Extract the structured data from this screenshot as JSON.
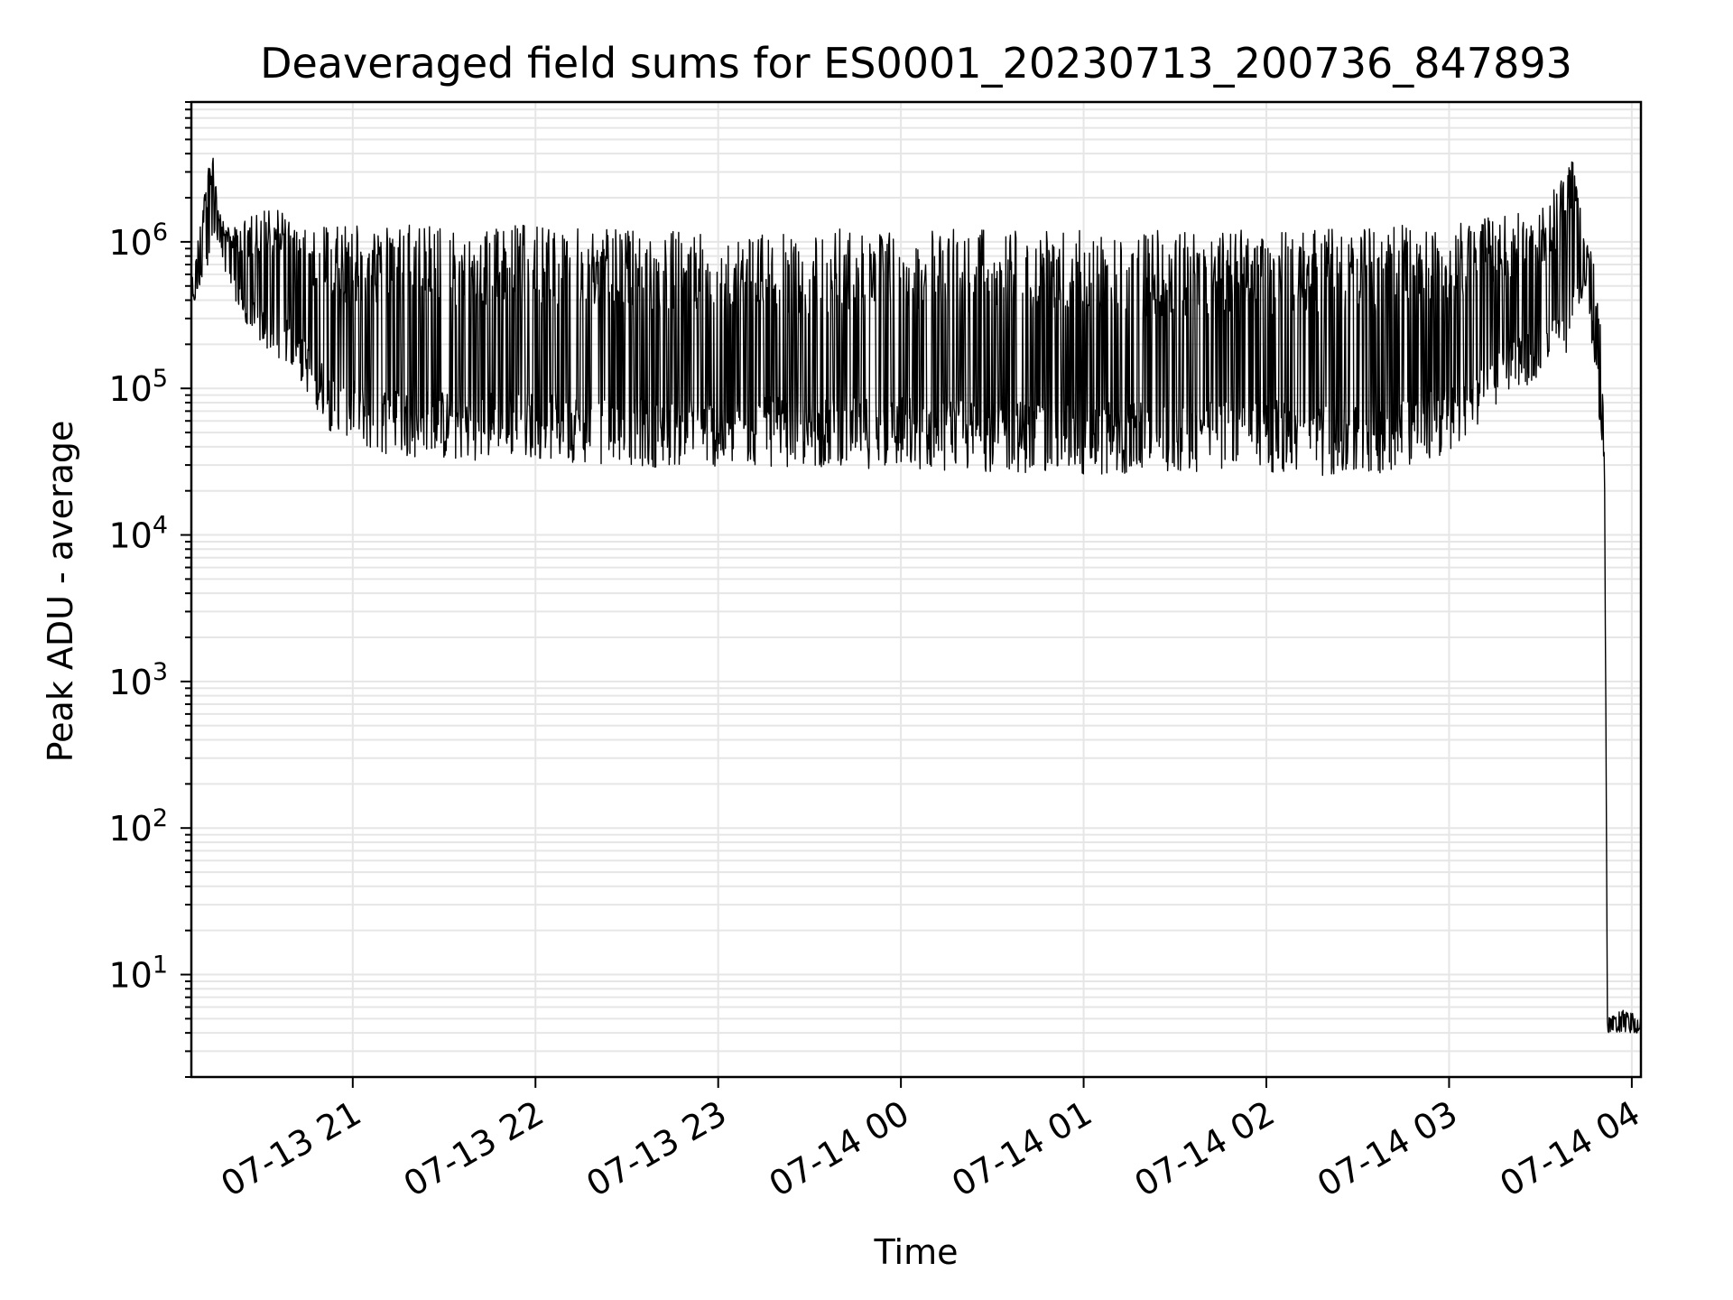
{
  "chart_data": {
    "type": "line",
    "title": "Deaveraged field sums for ES0001_20230713_200736_847893",
    "xlabel": "Time",
    "ylabel": "Peak ADU - average",
    "yscale": "log",
    "ylim": [
      2,
      9000000
    ],
    "xlim": [
      "07-13 20:07",
      "07-14 04:03"
    ],
    "x_ticks": [
      {
        "label": "07-13 21",
        "t": "07-13 21:00"
      },
      {
        "label": "07-13 22",
        "t": "07-13 22:00"
      },
      {
        "label": "07-13 23",
        "t": "07-13 23:00"
      },
      {
        "label": "07-14 00",
        "t": "07-14 00:00"
      },
      {
        "label": "07-14 01",
        "t": "07-14 01:00"
      },
      {
        "label": "07-14 02",
        "t": "07-14 02:00"
      },
      {
        "label": "07-14 03",
        "t": "07-14 03:00"
      },
      {
        "label": "07-14 04",
        "t": "07-14 04:00"
      }
    ],
    "y_ticks": [
      {
        "base": "10",
        "exp": "1",
        "value": 10
      },
      {
        "base": "10",
        "exp": "2",
        "value": 100
      },
      {
        "base": "10",
        "exp": "3",
        "value": 1000
      },
      {
        "base": "10",
        "exp": "4",
        "value": 10000
      },
      {
        "base": "10",
        "exp": "5",
        "value": 100000
      },
      {
        "base": "10",
        "exp": "6",
        "value": 1000000
      }
    ],
    "grid": true,
    "line_color": "#000000",
    "grid_color": "#e6e6e6",
    "series": [
      {
        "envelope_upper": [
          [
            "07-13 20:07",
            600000
          ],
          [
            "07-13 20:14",
            4700000
          ],
          [
            "07-13 20:16",
            1700000
          ],
          [
            "07-13 20:20",
            1200000
          ],
          [
            "07-13 20:30",
            1700000
          ],
          [
            "07-13 20:36",
            1900000
          ],
          [
            "07-13 20:40",
            1300000
          ],
          [
            "07-13 21:00",
            1300000
          ],
          [
            "07-13 21:30",
            1300000
          ],
          [
            "07-13 22:00",
            1300000
          ],
          [
            "07-13 22:30",
            1200000
          ],
          [
            "07-13 23:00",
            1200000
          ],
          [
            "07-13 23:30",
            1100000
          ],
          [
            "07-13 23:45",
            1300000
          ],
          [
            "07-14 00:00",
            1300000
          ],
          [
            "07-14 00:30",
            1200000
          ],
          [
            "07-14 01:00",
            1200000
          ],
          [
            "07-14 01:30",
            1200000
          ],
          [
            "07-14 02:00",
            1200000
          ],
          [
            "07-14 02:30",
            1300000
          ],
          [
            "07-14 03:00",
            1300000
          ],
          [
            "07-14 03:30",
            1700000
          ],
          [
            "07-14 03:41",
            3700000
          ],
          [
            "07-14 03:45",
            1100000
          ],
          [
            "07-14 03:49",
            600000
          ],
          [
            "07-14 03:51",
            60000
          ],
          [
            "07-14 03:52",
            5
          ],
          [
            "07-14 03:57",
            6
          ],
          [
            "07-14 04:03",
            5
          ]
        ],
        "envelope_lower": [
          [
            "07-13 20:07",
            330000
          ],
          [
            "07-13 20:15",
            1000000
          ],
          [
            "07-13 20:25",
            230000
          ],
          [
            "07-13 20:40",
            140000
          ],
          [
            "07-13 20:55",
            42000
          ],
          [
            "07-13 21:15",
            34000
          ],
          [
            "07-13 21:30",
            32000
          ],
          [
            "07-13 22:00",
            33000
          ],
          [
            "07-13 22:30",
            29000
          ],
          [
            "07-13 23:00",
            29000
          ],
          [
            "07-13 23:30",
            29000
          ],
          [
            "07-14 00:00",
            28000
          ],
          [
            "07-14 00:30",
            27000
          ],
          [
            "07-14 01:00",
            25000
          ],
          [
            "07-14 01:30",
            26000
          ],
          [
            "07-14 02:00",
            27000
          ],
          [
            "07-14 02:30",
            24000
          ],
          [
            "07-14 03:00",
            35000
          ],
          [
            "07-14 03:20",
            90000
          ],
          [
            "07-14 03:38",
            150000
          ],
          [
            "07-14 03:45",
            500000
          ],
          [
            "07-14 03:51",
            28000
          ],
          [
            "07-14 03:52",
            4
          ],
          [
            "07-14 04:03",
            4
          ]
        ]
      }
    ]
  }
}
